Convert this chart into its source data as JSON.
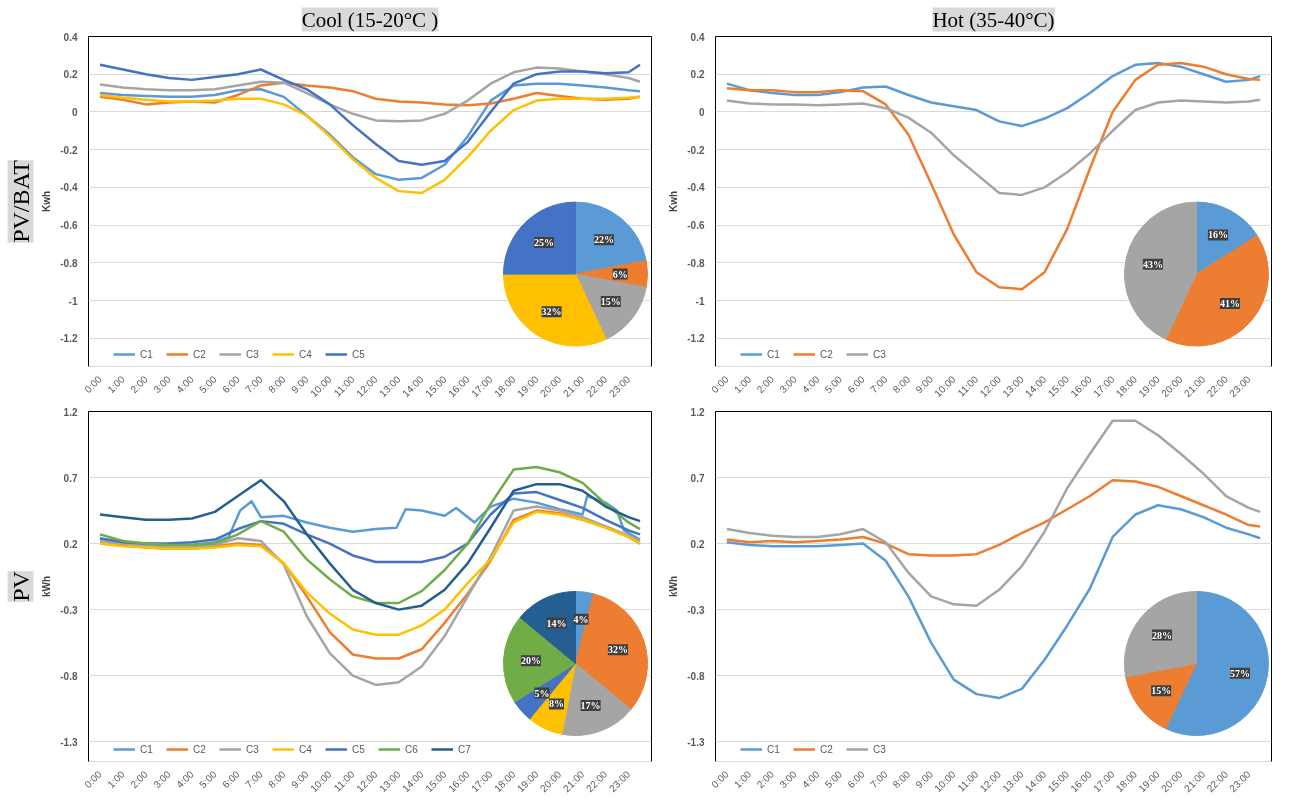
{
  "chart_data": [
    {
      "type": "line",
      "title": "Cool (15-20°C )",
      "annotations": [
        "PV/BAT"
      ],
      "ylabel": "Kwh",
      "xlim": [
        -0.5,
        24
      ],
      "ylim": [
        -1.35,
        0.4
      ],
      "yticks": [
        0.4,
        0.2,
        0,
        -0.2,
        -0.4,
        -0.6,
        -0.8,
        -1,
        -1.2
      ],
      "xticks": [
        {
          "value": 0,
          "label": "0:00"
        },
        {
          "value": 1,
          "label": "1:00"
        },
        {
          "value": 2,
          "label": "2:00"
        },
        {
          "value": 3,
          "label": "3:00"
        },
        {
          "value": 4,
          "label": "4:00"
        },
        {
          "value": 5,
          "label": "5:00"
        },
        {
          "value": 6,
          "label": "6:00"
        },
        {
          "value": 7,
          "label": "7:00"
        },
        {
          "value": 8,
          "label": "8:00"
        },
        {
          "value": 9,
          "label": "9:00"
        },
        {
          "value": 10,
          "label": "10:00"
        },
        {
          "value": 11,
          "label": "11:00"
        },
        {
          "value": 12,
          "label": "12:00"
        },
        {
          "value": 13,
          "label": "13:00"
        },
        {
          "value": 14,
          "label": "14:00"
        },
        {
          "value": 15,
          "label": "15:00"
        },
        {
          "value": 16,
          "label": "16:00"
        },
        {
          "value": 17,
          "label": "17:00"
        },
        {
          "value": 18,
          "label": "18:00"
        },
        {
          "value": 19,
          "label": "19:00"
        },
        {
          "value": 20,
          "label": "20:00"
        },
        {
          "value": 21,
          "label": "21:00"
        },
        {
          "value": 22,
          "label": "22:00"
        },
        {
          "value": 23,
          "label": "23:00"
        }
      ],
      "grid": "y",
      "legend": "bottom",
      "x": [
        0,
        1,
        2,
        3,
        4,
        5,
        6,
        7,
        8,
        9,
        10,
        11,
        12,
        13,
        14,
        15,
        16,
        17,
        18,
        19,
        20,
        21,
        22,
        23,
        23.5
      ],
      "series": [
        {
          "name": "C1",
          "color": "#5b9bd5",
          "values": [
            0.1,
            0.09,
            0.085,
            0.08,
            0.08,
            0.09,
            0.115,
            0.12,
            0.08,
            -0.02,
            -0.12,
            -0.24,
            -0.33,
            -0.36,
            -0.35,
            -0.28,
            -0.13,
            0.06,
            0.14,
            0.15,
            0.15,
            0.14,
            0.13,
            0.115,
            0.11
          ]
        },
        {
          "name": "C2",
          "color": "#ed7d31",
          "values": [
            0.08,
            0.065,
            0.04,
            0.05,
            0.055,
            0.05,
            0.09,
            0.14,
            0.155,
            0.14,
            0.13,
            0.11,
            0.07,
            0.055,
            0.05,
            0.04,
            0.035,
            0.045,
            0.07,
            0.1,
            0.085,
            0.07,
            0.065,
            0.07,
            0.08
          ]
        },
        {
          "name": "C3",
          "color": "#a5a5a5",
          "values": [
            0.145,
            0.13,
            0.12,
            0.115,
            0.115,
            0.12,
            0.14,
            0.16,
            0.155,
            0.1,
            0.04,
            -0.01,
            -0.045,
            -0.05,
            -0.045,
            -0.01,
            0.06,
            0.15,
            0.21,
            0.235,
            0.23,
            0.215,
            0.2,
            0.18,
            0.16
          ]
        },
        {
          "name": "C4",
          "color": "#ffc000",
          "values": [
            0.09,
            0.075,
            0.065,
            0.055,
            0.055,
            0.06,
            0.07,
            0.07,
            0.04,
            -0.02,
            -0.13,
            -0.25,
            -0.35,
            -0.42,
            -0.43,
            -0.36,
            -0.24,
            -0.1,
            0.01,
            0.06,
            0.07,
            0.07,
            0.07,
            0.075,
            0.08
          ]
        },
        {
          "name": "C5",
          "color": "#4472c4",
          "values": [
            0.25,
            0.225,
            0.2,
            0.18,
            0.17,
            0.185,
            0.2,
            0.225,
            0.17,
            0.12,
            0.04,
            -0.07,
            -0.17,
            -0.26,
            -0.28,
            -0.26,
            -0.16,
            0.0,
            0.15,
            0.2,
            0.215,
            0.215,
            0.205,
            0.21,
            0.25
          ]
        }
      ]
    },
    {
      "type": "pie",
      "categories": [
        null,
        null,
        null,
        null,
        null
      ],
      "values": [
        22,
        6,
        15,
        32,
        25
      ],
      "value_labels": [
        "22%",
        "6%",
        "15%",
        "32%",
        "25%"
      ],
      "colors": [
        "#5b9bd5",
        "#ed7d31",
        "#a5a5a5",
        "#ffc000",
        "#4472c4"
      ]
    },
    {
      "type": "line",
      "title": "Hot (35-40°C)",
      "ylabel": "Kwh",
      "xlim": [
        -0.5,
        24
      ],
      "ylim": [
        -1.35,
        0.4
      ],
      "yticks": [
        0.4,
        0.2,
        0,
        -0.2,
        -0.4,
        -0.6,
        -0.8,
        -1,
        -1.2
      ],
      "xticks": [
        {
          "value": 0,
          "label": "0:00"
        },
        {
          "value": 1,
          "label": "1:00"
        },
        {
          "value": 2,
          "label": "2:00"
        },
        {
          "value": 3,
          "label": "3:00"
        },
        {
          "value": 4,
          "label": "4:00"
        },
        {
          "value": 5,
          "label": "5:00"
        },
        {
          "value": 6,
          "label": "6:00"
        },
        {
          "value": 7,
          "label": "7:00"
        },
        {
          "value": 8,
          "label": "8:00"
        },
        {
          "value": 9,
          "label": "9:00"
        },
        {
          "value": 10,
          "label": "10:00"
        },
        {
          "value": 11,
          "label": "11:00"
        },
        {
          "value": 12,
          "label": "12:00"
        },
        {
          "value": 13,
          "label": "13:00"
        },
        {
          "value": 14,
          "label": "14:00"
        },
        {
          "value": 15,
          "label": "15:00"
        },
        {
          "value": 16,
          "label": "16:00"
        },
        {
          "value": 17,
          "label": "17:00"
        },
        {
          "value": 18,
          "label": "18:00"
        },
        {
          "value": 19,
          "label": "19:00"
        },
        {
          "value": 20,
          "label": "20:00"
        },
        {
          "value": 21,
          "label": "21:00"
        },
        {
          "value": 22,
          "label": "22:00"
        },
        {
          "value": 23,
          "label": "23:00"
        }
      ],
      "grid": "y",
      "legend": "bottom",
      "x": [
        0,
        1,
        2,
        3,
        4,
        5,
        6,
        7,
        8,
        9,
        10,
        11,
        12,
        13,
        14,
        15,
        16,
        17,
        18,
        19,
        20,
        21,
        22,
        23,
        23.5
      ],
      "series": [
        {
          "name": "C1",
          "color": "#5b9bd5",
          "values": [
            0.15,
            0.115,
            0.1,
            0.09,
            0.09,
            0.105,
            0.13,
            0.135,
            0.09,
            0.05,
            0.03,
            0.01,
            -0.05,
            -0.075,
            -0.035,
            0.02,
            0.1,
            0.19,
            0.25,
            0.26,
            0.24,
            0.2,
            0.16,
            0.17,
            0.19
          ]
        },
        {
          "name": "C2",
          "color": "#ed7d31",
          "values": [
            0.125,
            0.115,
            0.115,
            0.105,
            0.105,
            0.115,
            0.11,
            0.04,
            -0.12,
            -0.38,
            -0.65,
            -0.85,
            -0.93,
            -0.94,
            -0.85,
            -0.62,
            -0.3,
            0.0,
            0.17,
            0.25,
            0.26,
            0.24,
            0.2,
            0.175,
            0.17
          ]
        },
        {
          "name": "C3",
          "color": "#a5a5a5",
          "values": [
            0.06,
            0.045,
            0.04,
            0.04,
            0.035,
            0.04,
            0.045,
            0.02,
            -0.03,
            -0.11,
            -0.23,
            -0.33,
            -0.43,
            -0.44,
            -0.4,
            -0.32,
            -0.22,
            -0.1,
            0.01,
            0.05,
            0.06,
            0.055,
            0.05,
            0.055,
            0.065
          ]
        }
      ]
    },
    {
      "type": "pie",
      "categories": [
        null,
        null,
        null
      ],
      "values": [
        16,
        41,
        43
      ],
      "value_labels": [
        "16%",
        "41%",
        "43%"
      ],
      "colors": [
        "#5b9bd5",
        "#ed7d31",
        "#a5a5a5"
      ]
    },
    {
      "type": "line",
      "annotations": [
        "PV"
      ],
      "ylabel": "kWh",
      "xlim": [
        -0.5,
        24
      ],
      "ylim": [
        -1.45,
        1.2
      ],
      "yticks": [
        1.2,
        0.7,
        0.2,
        -0.3,
        -0.8,
        -1.3
      ],
      "xticks": [
        {
          "value": 0,
          "label": "0:00"
        },
        {
          "value": 1,
          "label": "1:00"
        },
        {
          "value": 2,
          "label": "2:00"
        },
        {
          "value": 3,
          "label": "3:00"
        },
        {
          "value": 4,
          "label": "4:00"
        },
        {
          "value": 5,
          "label": "5:00"
        },
        {
          "value": 6,
          "label": "6:00"
        },
        {
          "value": 7,
          "label": "7:00"
        },
        {
          "value": 8,
          "label": "8:00"
        },
        {
          "value": 9,
          "label": "9:00"
        },
        {
          "value": 10,
          "label": "10:00"
        },
        {
          "value": 11,
          "label": "11:00"
        },
        {
          "value": 12,
          "label": "12:00"
        },
        {
          "value": 13,
          "label": "13:00"
        },
        {
          "value": 14,
          "label": "14:00"
        },
        {
          "value": 15,
          "label": "15:00"
        },
        {
          "value": 16,
          "label": "16:00"
        },
        {
          "value": 17,
          "label": "17:00"
        },
        {
          "value": 18,
          "label": "18:00"
        },
        {
          "value": 19,
          "label": "19:00"
        },
        {
          "value": 20,
          "label": "20:00"
        },
        {
          "value": 21,
          "label": "21:00"
        },
        {
          "value": 22,
          "label": "22:00"
        },
        {
          "value": 23,
          "label": "23:00"
        }
      ],
      "grid": "y",
      "legend": "bottom",
      "x": [
        0,
        1,
        2,
        3,
        4,
        5,
        6,
        7,
        8,
        9,
        10,
        11,
        12,
        13,
        14,
        15,
        16,
        17,
        18,
        19,
        20,
        21,
        22,
        23,
        23.5
      ],
      "series": [
        {
          "name": "C1",
          "color": "#5b9bd5",
          "x": [
            0,
            1,
            2,
            3,
            4,
            5,
            5.6,
            6.1,
            6.6,
            7,
            8,
            9,
            10,
            11,
            12,
            12.9,
            13.3,
            14,
            15,
            15.5,
            16.3,
            17,
            18,
            19,
            20,
            21,
            21.2,
            22,
            22.5,
            22.8,
            23.5
          ],
          "values": [
            0.23,
            0.2,
            0.19,
            0.19,
            0.19,
            0.21,
            0.25,
            0.45,
            0.52,
            0.4,
            0.41,
            0.36,
            0.32,
            0.29,
            0.31,
            0.32,
            0.46,
            0.45,
            0.41,
            0.47,
            0.36,
            0.48,
            0.54,
            0.51,
            0.46,
            0.42,
            0.56,
            0.51,
            0.45,
            0.3,
            0.23
          ]
        },
        {
          "name": "C2",
          "color": "#ed7d31",
          "values": [
            0.2,
            0.19,
            0.17,
            0.16,
            0.16,
            0.18,
            0.2,
            0.19,
            0.05,
            -0.2,
            -0.47,
            -0.64,
            -0.67,
            -0.67,
            -0.6,
            -0.4,
            -0.18,
            0.07,
            0.38,
            0.45,
            0.43,
            0.38,
            0.33,
            0.25,
            0.2
          ]
        },
        {
          "name": "C3",
          "color": "#a5a5a5",
          "values": [
            0.22,
            0.2,
            0.18,
            0.17,
            0.17,
            0.19,
            0.24,
            0.22,
            0.04,
            -0.35,
            -0.63,
            -0.8,
            -0.87,
            -0.85,
            -0.73,
            -0.5,
            -0.2,
            0.1,
            0.45,
            0.48,
            0.45,
            0.4,
            0.33,
            0.26,
            0.22
          ]
        },
        {
          "name": "C4",
          "color": "#ffc000",
          "values": [
            0.2,
            0.18,
            0.17,
            0.16,
            0.16,
            0.17,
            0.19,
            0.18,
            0.05,
            -0.17,
            -0.33,
            -0.45,
            -0.49,
            -0.49,
            -0.42,
            -0.3,
            -0.1,
            0.08,
            0.36,
            0.44,
            0.42,
            0.38,
            0.32,
            0.25,
            0.2
          ]
        },
        {
          "name": "C5",
          "color": "#4472c4",
          "values": [
            0.24,
            0.21,
            0.2,
            0.2,
            0.21,
            0.23,
            0.31,
            0.37,
            0.35,
            0.27,
            0.2,
            0.11,
            0.06,
            0.06,
            0.06,
            0.1,
            0.2,
            0.42,
            0.58,
            0.59,
            0.53,
            0.47,
            0.38,
            0.3,
            0.27
          ]
        },
        {
          "name": "C6",
          "color": "#70ad47",
          "values": [
            0.27,
            0.22,
            0.2,
            0.19,
            0.19,
            0.2,
            0.27,
            0.37,
            0.29,
            0.08,
            -0.07,
            -0.2,
            -0.25,
            -0.25,
            -0.16,
            0.0,
            0.2,
            0.5,
            0.76,
            0.78,
            0.74,
            0.66,
            0.5,
            0.36,
            0.31
          ]
        },
        {
          "name": "C7",
          "color": "#255e91",
          "values": [
            0.42,
            0.4,
            0.38,
            0.38,
            0.39,
            0.44,
            0.56,
            0.68,
            0.52,
            0.27,
            0.05,
            -0.15,
            -0.25,
            -0.3,
            -0.27,
            -0.15,
            0.05,
            0.32,
            0.6,
            0.65,
            0.65,
            0.6,
            0.48,
            0.4,
            0.37
          ]
        }
      ]
    },
    {
      "type": "pie",
      "categories": [
        null,
        null,
        null,
        null,
        null,
        null,
        null
      ],
      "values": [
        4,
        32,
        17,
        8,
        5,
        20,
        14
      ],
      "value_labels": [
        "4%",
        "32%",
        "17%",
        "8%",
        "5%",
        "20%",
        "14%"
      ],
      "colors": [
        "#5b9bd5",
        "#ed7d31",
        "#a5a5a5",
        "#ffc000",
        "#4472c4",
        "#70ad47",
        "#255e91"
      ]
    },
    {
      "type": "line",
      "ylabel": "kWh",
      "xlim": [
        -0.5,
        24
      ],
      "ylim": [
        -1.45,
        1.2
      ],
      "yticks": [
        1.2,
        0.7,
        0.2,
        -0.3,
        -0.8,
        -1.3
      ],
      "xticks": [
        {
          "value": 0,
          "label": "0:00"
        },
        {
          "value": 1,
          "label": "1:00"
        },
        {
          "value": 2,
          "label": "2:00"
        },
        {
          "value": 3,
          "label": "3:00"
        },
        {
          "value": 4,
          "label": "4:00"
        },
        {
          "value": 5,
          "label": "5:00"
        },
        {
          "value": 6,
          "label": "6:00"
        },
        {
          "value": 7,
          "label": "7:00"
        },
        {
          "value": 8,
          "label": "8:00"
        },
        {
          "value": 9,
          "label": "9:00"
        },
        {
          "value": 10,
          "label": "10:00"
        },
        {
          "value": 11,
          "label": "11:00"
        },
        {
          "value": 12,
          "label": "12:00"
        },
        {
          "value": 13,
          "label": "13:00"
        },
        {
          "value": 14,
          "label": "14:00"
        },
        {
          "value": 15,
          "label": "15:00"
        },
        {
          "value": 16,
          "label": "16:00"
        },
        {
          "value": 17,
          "label": "17:00"
        },
        {
          "value": 18,
          "label": "18:00"
        },
        {
          "value": 19,
          "label": "19:00"
        },
        {
          "value": 20,
          "label": "20:00"
        },
        {
          "value": 21,
          "label": "21:00"
        },
        {
          "value": 22,
          "label": "22:00"
        },
        {
          "value": 23,
          "label": "23:00"
        }
      ],
      "grid": "y",
      "legend": "bottom",
      "x": [
        0,
        1,
        2,
        3,
        4,
        5,
        6,
        7,
        8,
        9,
        10,
        11,
        12,
        13,
        14,
        15,
        16,
        17,
        18,
        19,
        20,
        21,
        22,
        23,
        23.5
      ],
      "series": [
        {
          "name": "C1",
          "color": "#5b9bd5",
          "values": [
            0.21,
            0.19,
            0.18,
            0.18,
            0.18,
            0.19,
            0.2,
            0.07,
            -0.2,
            -0.55,
            -0.83,
            -0.94,
            -0.97,
            -0.9,
            -0.68,
            -0.42,
            -0.14,
            0.25,
            0.42,
            0.49,
            0.46,
            0.4,
            0.32,
            0.27,
            0.24
          ]
        },
        {
          "name": "C2",
          "color": "#ed7d31",
          "values": [
            0.23,
            0.21,
            0.22,
            0.21,
            0.22,
            0.23,
            0.25,
            0.2,
            0.12,
            0.11,
            0.11,
            0.12,
            0.19,
            0.28,
            0.36,
            0.46,
            0.56,
            0.68,
            0.67,
            0.63,
            0.56,
            0.49,
            0.42,
            0.34,
            0.33
          ]
        },
        {
          "name": "C3",
          "color": "#a5a5a5",
          "values": [
            0.31,
            0.28,
            0.26,
            0.25,
            0.25,
            0.27,
            0.31,
            0.21,
            -0.02,
            -0.2,
            -0.26,
            -0.27,
            -0.15,
            0.03,
            0.29,
            0.62,
            0.88,
            1.13,
            1.13,
            1.02,
            0.88,
            0.73,
            0.56,
            0.47,
            0.44
          ]
        }
      ]
    },
    {
      "type": "pie",
      "categories": [
        null,
        null,
        null
      ],
      "values": [
        57,
        15,
        28
      ],
      "value_labels": [
        "57%",
        "15%",
        "28%"
      ],
      "colors": [
        "#5b9bd5",
        "#ed7d31",
        "#a5a5a5"
      ]
    }
  ]
}
